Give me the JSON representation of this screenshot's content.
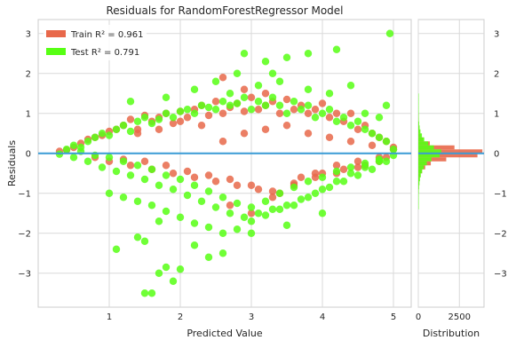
{
  "chart_data": {
    "type": "scatter",
    "title": "Residuals for RandomForestRegressor Model",
    "xlabel": "Predicted Value",
    "ylabel": "Residuals",
    "xlim": [
      0,
      5.25
    ],
    "ylim": [
      -3.85,
      3.35
    ],
    "xticks": [
      1,
      2,
      3,
      4,
      5
    ],
    "yticks": [
      -3,
      -2,
      -1,
      0,
      1,
      2,
      3
    ],
    "grid": true,
    "legend_position": "top-left",
    "zero_line": 0,
    "legend": [
      {
        "label": "Train R² = 0.961",
        "color": "#e8684a"
      },
      {
        "label": "Test R² = 0.791",
        "color": "#57ff14"
      }
    ],
    "series": [
      {
        "name": "Train R² = 0.961",
        "color": "#e8684a",
        "x": [
          0.3,
          0.4,
          0.5,
          0.6,
          0.7,
          0.8,
          0.9,
          1.0,
          1.1,
          1.2,
          1.3,
          1.4,
          1.5,
          1.6,
          1.7,
          1.8,
          1.9,
          2.0,
          2.1,
          2.2,
          2.3,
          2.4,
          2.5,
          2.6,
          2.7,
          2.8,
          2.9,
          3.0,
          3.1,
          3.2,
          3.3,
          3.4,
          3.5,
          3.6,
          3.7,
          3.8,
          3.9,
          4.0,
          4.1,
          4.2,
          4.3,
          4.4,
          4.5,
          4.6,
          4.7,
          4.8,
          4.9,
          5.0,
          1.0,
          1.3,
          1.6,
          1.9,
          2.2,
          2.5,
          2.8,
          3.1,
          3.4,
          3.7,
          4.0,
          4.3,
          4.6,
          4.9,
          0.8,
          1.2,
          1.5,
          1.8,
          2.1,
          2.4,
          2.7,
          3.0,
          3.3,
          3.6,
          3.9,
          4.2,
          4.5,
          4.8,
          2.6,
          2.9,
          3.2,
          3.5,
          3.8,
          4.1,
          4.4,
          4.7,
          5.0,
          2.7,
          3.0,
          3.3,
          3.6,
          3.9,
          4.2,
          4.5,
          4.8,
          1.4,
          1.7,
          2.0,
          2.3,
          2.6,
          2.9,
          3.2
        ],
        "y": [
          0.05,
          0.08,
          0.15,
          0.25,
          0.35,
          0.4,
          0.45,
          0.55,
          0.6,
          0.7,
          0.85,
          0.6,
          0.95,
          0.8,
          0.9,
          1.0,
          0.75,
          1.05,
          0.9,
          1.1,
          1.2,
          0.95,
          1.3,
          1.0,
          1.15,
          1.25,
          1.05,
          1.4,
          1.1,
          1.2,
          1.3,
          1.0,
          1.35,
          1.1,
          1.2,
          1.0,
          1.1,
          1.25,
          0.9,
          1.0,
          0.8,
          1.0,
          0.6,
          0.7,
          0.5,
          0.4,
          0.3,
          0.15,
          -0.2,
          -0.3,
          -0.4,
          -0.5,
          -0.6,
          -0.7,
          -0.8,
          -0.9,
          -1.0,
          -0.6,
          -0.5,
          -0.4,
          -0.3,
          -0.1,
          -0.1,
          -0.15,
          -0.2,
          -0.3,
          -0.45,
          -0.55,
          -0.65,
          -0.8,
          -0.95,
          -0.75,
          -0.6,
          -0.5,
          -0.35,
          -0.2,
          0.3,
          0.5,
          0.6,
          0.7,
          0.5,
          0.4,
          0.3,
          0.2,
          0.1,
          -1.3,
          -1.5,
          -1.1,
          -0.8,
          -0.5,
          -0.3,
          -0.2,
          -0.1,
          0.5,
          0.6,
          0.8,
          0.7,
          1.9,
          1.6,
          1.5
        ]
      },
      {
        "name": "Test R² = 0.791",
        "color": "#57ff14",
        "x": [
          0.3,
          0.4,
          0.5,
          0.6,
          0.7,
          0.8,
          0.9,
          1.0,
          1.1,
          1.2,
          1.3,
          1.4,
          1.5,
          1.6,
          1.7,
          1.8,
          1.9,
          2.0,
          2.1,
          2.2,
          2.3,
          2.4,
          2.5,
          2.6,
          2.7,
          2.8,
          2.9,
          3.0,
          3.1,
          3.2,
          3.3,
          3.4,
          3.5,
          3.6,
          3.7,
          3.8,
          3.9,
          4.0,
          4.1,
          4.2,
          4.3,
          4.4,
          4.5,
          4.6,
          4.7,
          4.8,
          4.9,
          5.0,
          0.5,
          0.7,
          0.9,
          1.1,
          1.3,
          1.5,
          1.7,
          1.9,
          2.1,
          2.3,
          2.5,
          2.7,
          2.9,
          3.1,
          3.3,
          3.5,
          3.7,
          3.9,
          4.1,
          4.3,
          4.5,
          4.7,
          4.9,
          0.6,
          0.8,
          1.0,
          1.2,
          1.4,
          1.6,
          1.8,
          2.0,
          2.2,
          2.4,
          2.6,
          2.8,
          3.0,
          3.2,
          3.4,
          3.6,
          3.8,
          4.0,
          4.2,
          4.4,
          4.6,
          4.8,
          5.0,
          1.0,
          1.2,
          1.4,
          1.6,
          1.8,
          2.0,
          2.2,
          2.4,
          2.6,
          2.8,
          3.0,
          3.2,
          3.4,
          3.6,
          3.8,
          4.0,
          4.2,
          4.4,
          4.6,
          4.8,
          1.5,
          1.6,
          1.7,
          1.9,
          1.5,
          1.8,
          2.0,
          2.4,
          1.1,
          1.4,
          1.7,
          2.2,
          2.6,
          3.0,
          3.5,
          4.0,
          2.5,
          2.8,
          3.1,
          3.4,
          3.8,
          4.1,
          4.4,
          4.8,
          2.9,
          3.2,
          3.5,
          3.8,
          4.2,
          1.3,
          1.8,
          2.2,
          2.7,
          3.3,
          4.6,
          4.9,
          4.95
        ],
        "y": [
          -0.02,
          0.1,
          0.2,
          0.15,
          0.3,
          0.4,
          0.5,
          0.45,
          0.6,
          0.7,
          0.55,
          0.8,
          0.9,
          0.75,
          0.85,
          1.0,
          0.9,
          1.05,
          1.1,
          1.0,
          1.2,
          1.15,
          1.1,
          1.3,
          1.2,
          1.25,
          1.4,
          1.1,
          1.3,
          1.2,
          1.4,
          1.2,
          1.0,
          1.3,
          1.1,
          1.2,
          0.9,
          1.0,
          1.1,
          0.8,
          0.9,
          0.7,
          0.8,
          0.6,
          0.5,
          0.4,
          0.3,
          0.1,
          -0.1,
          -0.2,
          -0.35,
          -0.45,
          -0.55,
          -0.65,
          -0.8,
          -0.9,
          -1.05,
          -1.2,
          -1.35,
          -1.5,
          -1.6,
          -1.5,
          -1.4,
          -1.3,
          -1.15,
          -1.0,
          -0.85,
          -0.7,
          -0.55,
          -0.4,
          -0.2,
          0.05,
          -0.05,
          -0.1,
          -0.2,
          -0.3,
          -0.4,
          -0.55,
          -0.65,
          -0.8,
          -0.95,
          -1.1,
          -1.25,
          -1.35,
          -1.2,
          -1.0,
          -0.85,
          -0.7,
          -0.6,
          -0.45,
          -0.35,
          -0.25,
          -0.15,
          -0.05,
          -1.0,
          -1.1,
          -1.2,
          -1.3,
          -1.45,
          -1.6,
          -1.75,
          -1.85,
          -2.0,
          -1.9,
          -1.7,
          -1.55,
          -1.4,
          -1.3,
          -1.1,
          -0.9,
          -0.7,
          -0.5,
          -0.35,
          -0.2,
          -3.5,
          -3.5,
          -3.0,
          -3.2,
          -2.2,
          -2.85,
          -2.9,
          -2.6,
          -2.4,
          -2.1,
          -1.7,
          -2.3,
          -2.5,
          -2.0,
          -1.8,
          -1.5,
          1.8,
          2.0,
          1.7,
          1.8,
          1.6,
          1.5,
          1.7,
          0.9,
          2.5,
          2.3,
          2.4,
          2.5,
          2.6,
          1.3,
          1.4,
          1.6,
          1.5,
          2.0,
          1.0,
          1.2,
          3.0
        ]
      }
    ],
    "distribution": {
      "xlabel": "Distribution",
      "xticks": [
        0,
        2500
      ],
      "xlim": [
        0,
        4000
      ],
      "bin_width": 0.1,
      "train": {
        "color": "#e8684a",
        "bins": [
          -1.0,
          -0.9,
          -0.8,
          -0.7,
          -0.6,
          -0.5,
          -0.4,
          -0.3,
          -0.2,
          -0.1,
          0.0,
          0.1,
          0.2,
          0.3,
          0.4,
          0.5,
          0.6,
          0.7,
          0.8,
          0.9
        ],
        "counts": [
          10,
          20,
          30,
          60,
          120,
          230,
          420,
          760,
          1700,
          3600,
          3900,
          2200,
          700,
          300,
          140,
          70,
          40,
          20,
          10,
          5
        ]
      },
      "test": {
        "color": "#57ff14",
        "bins": [
          -1.4,
          -1.3,
          -1.2,
          -1.1,
          -1.0,
          -0.9,
          -0.8,
          -0.7,
          -0.6,
          -0.5,
          -0.4,
          -0.3,
          -0.2,
          -0.1,
          0.0,
          0.1,
          0.2,
          0.3,
          0.4,
          0.5,
          0.6,
          0.7,
          0.8,
          0.9,
          1.0,
          1.1,
          1.2,
          1.3,
          1.4
        ],
        "counts": [
          5,
          8,
          12,
          20,
          30,
          45,
          70,
          100,
          150,
          230,
          340,
          520,
          800,
          1300,
          1400,
          950,
          600,
          360,
          220,
          130,
          80,
          50,
          30,
          20,
          12,
          8,
          5,
          4,
          2
        ]
      }
    }
  }
}
